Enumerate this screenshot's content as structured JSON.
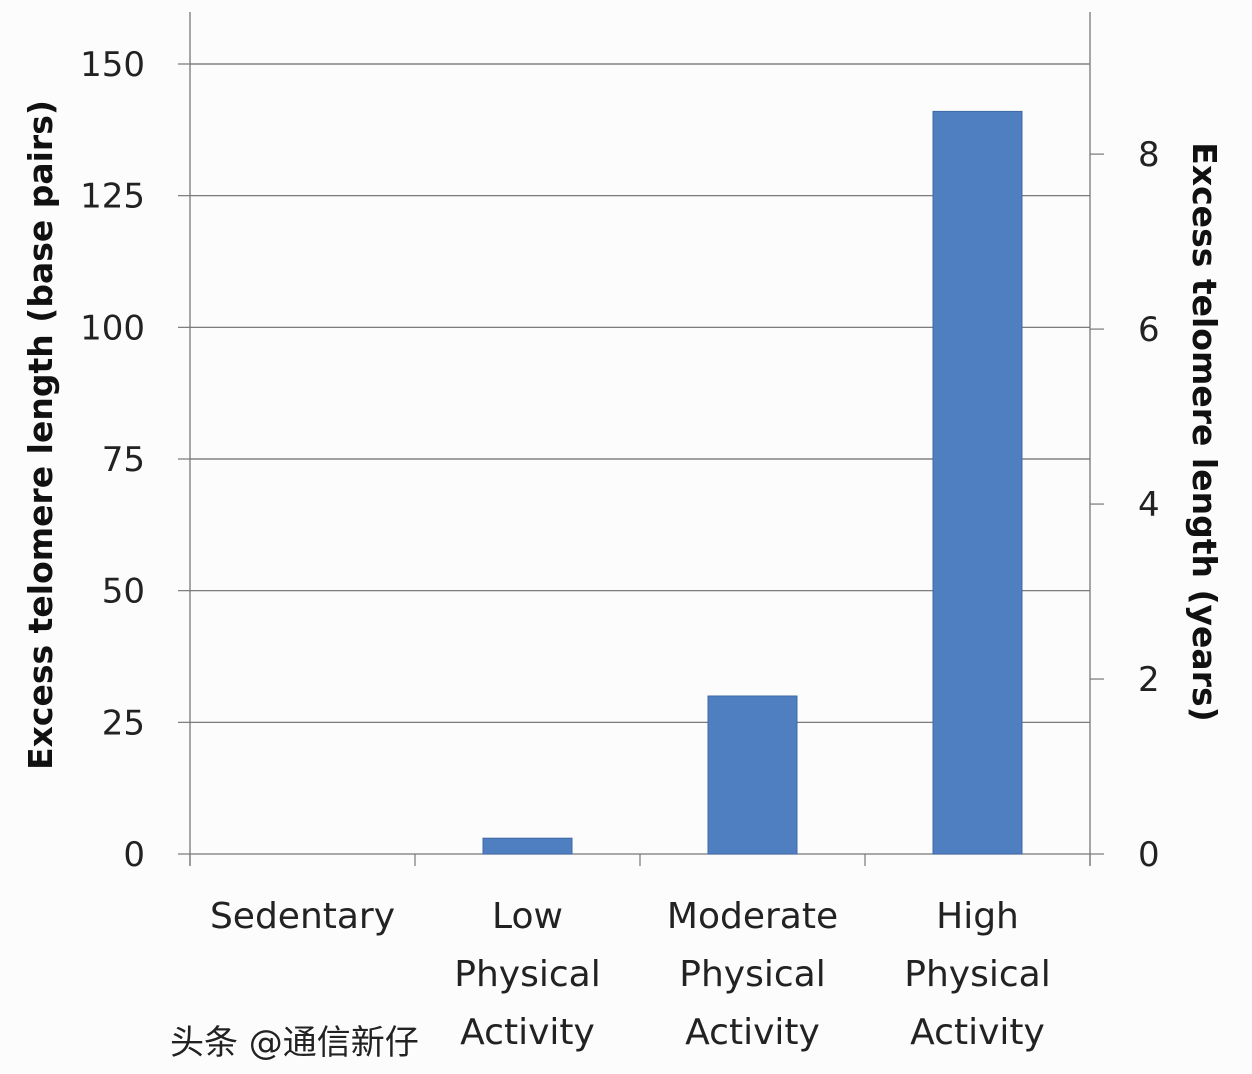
{
  "chart_data": {
    "type": "bar",
    "categories": [
      [
        "Sedentary"
      ],
      [
        "Low",
        "Physical",
        "Activity"
      ],
      [
        "Moderate",
        "Physical",
        "Activity"
      ],
      [
        "High",
        "Physical",
        "Activity"
      ]
    ],
    "values": [
      0,
      3,
      30,
      141
    ],
    "bar_color": "#4f7fc1",
    "ylabel": "Excess telomere length (base pairs)",
    "ylim": [
      0,
      150
    ],
    "yticks": [
      0,
      25,
      50,
      75,
      100,
      125,
      150
    ],
    "y2label": "Excess telomere length (years)",
    "y2lim": [
      0,
      9.03
    ],
    "y2ticks": [
      0,
      2,
      4,
      6,
      8
    ],
    "grid": true
  },
  "watermark": "头条 @通信新仔"
}
